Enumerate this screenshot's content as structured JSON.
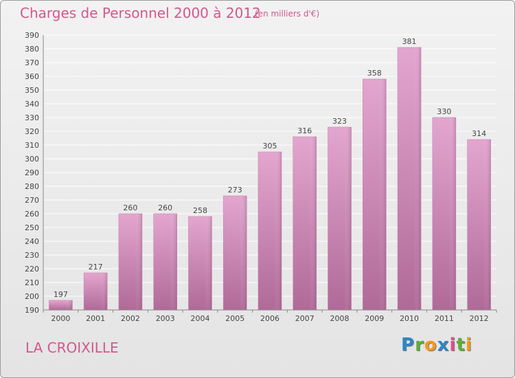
{
  "header": {
    "title": "Charges de Personnel 2000 à 2012",
    "subtitle": "(en milliers d'€)"
  },
  "footer": {
    "commune": "LA CROIXILLE",
    "logo_letters": [
      "P",
      "r",
      "o",
      "x",
      "i",
      "t",
      "i"
    ],
    "logo_colors": [
      "#2c87c8",
      "#5fae3a",
      "#f29a1e",
      "#2c87c8",
      "#e34d8d",
      "#5fae3a",
      "#f29a1e"
    ]
  },
  "colors": {
    "bar": "#d993be",
    "bar_dark": "#b36a98",
    "text": "#d2588a"
  },
  "chart_data": {
    "type": "bar",
    "categories": [
      "2000",
      "2001",
      "2002",
      "2003",
      "2004",
      "2005",
      "2006",
      "2007",
      "2008",
      "2009",
      "2010",
      "2011",
      "2012"
    ],
    "values": [
      197,
      217,
      260,
      260,
      258,
      273,
      305,
      316,
      323,
      358,
      381,
      330,
      314
    ],
    "title": "Charges de Personnel 2000 à 2012",
    "xlabel": "",
    "ylabel": "",
    "ylim": [
      190,
      390
    ],
    "ytick_step": 10,
    "grid": true,
    "legend": "none"
  }
}
